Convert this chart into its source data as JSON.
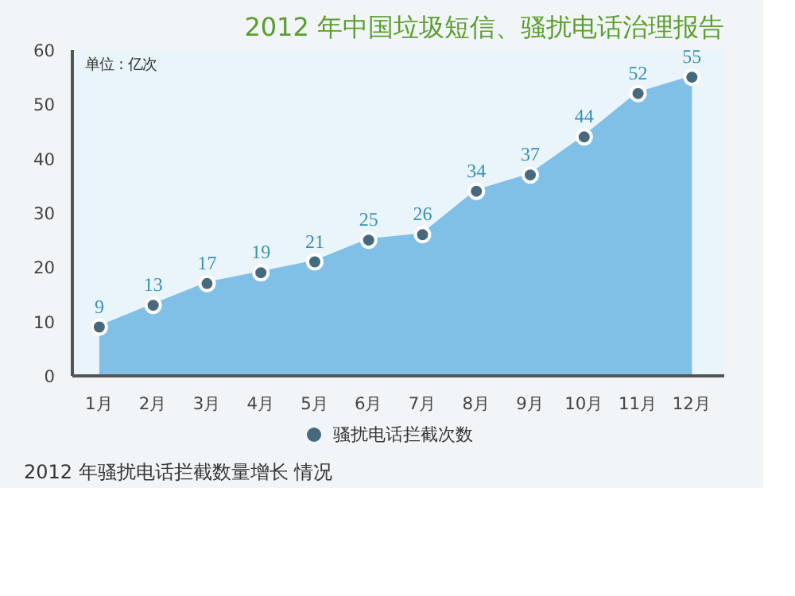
{
  "chart_data": {
    "type": "area",
    "title": "2012 年中国垃圾短信、骚扰电话治理报告",
    "ylabel": "单位：亿次",
    "categories": [
      "1月",
      "2月",
      "3月",
      "4月",
      "5月",
      "6月",
      "7月",
      "8月",
      "9月",
      "10月",
      "11月",
      "12月"
    ],
    "series": [
      {
        "name": "骚扰电话拦截次数",
        "color": "#80bfe6",
        "values": [
          9,
          13,
          17,
          19,
          21,
          25,
          26,
          34,
          37,
          44,
          52,
          55
        ]
      }
    ],
    "ylim": [
      0,
      60
    ],
    "yticks": [
      0,
      10,
      20,
      30,
      40,
      50,
      60
    ],
    "data_labels": true,
    "grid": false,
    "legend": "bottom",
    "marker": "circle",
    "annotations": [
      "2012 年骚扰电话拦截数量增长 情况"
    ]
  }
}
